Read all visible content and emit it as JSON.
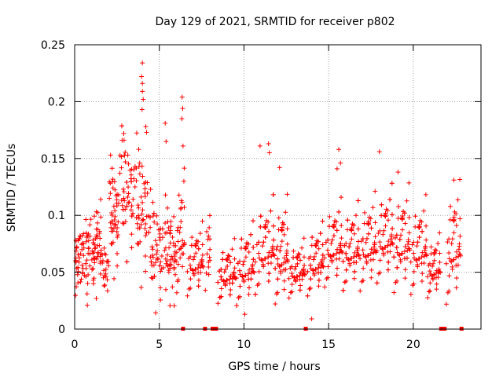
{
  "chart_data": {
    "type": "scatter",
    "title": "Day 129 of 2021, SRMTID for receiver p802",
    "xlabel": "GPS time / hours",
    "ylabel": "SRMTID / TECUs",
    "xlim": [
      0,
      24
    ],
    "ylim": [
      0,
      0.25
    ],
    "xticks": [
      0,
      5,
      10,
      15,
      20
    ],
    "xtick_labels": [
      "0",
      "5",
      "10",
      "15",
      "20"
    ],
    "yticks": [
      0,
      0.05,
      0.1,
      0.15,
      0.2,
      0.25
    ],
    "ytick_labels": [
      "0",
      "0.05",
      "0.1",
      "0.15",
      "0.2",
      "0.25"
    ],
    "grid": true,
    "marker": "+",
    "color": "#ff0000",
    "outliers": [
      {
        "x": 4.0,
        "y": 0.234
      },
      {
        "x": 3.95,
        "y": 0.222
      },
      {
        "x": 4.0,
        "y": 0.216
      },
      {
        "x": 4.0,
        "y": 0.209
      },
      {
        "x": 4.05,
        "y": 0.202
      },
      {
        "x": 3.98,
        "y": 0.193
      },
      {
        "x": 6.35,
        "y": 0.204
      },
      {
        "x": 6.38,
        "y": 0.194
      },
      {
        "x": 6.33,
        "y": 0.185
      },
      {
        "x": 5.35,
        "y": 0.181
      },
      {
        "x": 4.2,
        "y": 0.178
      },
      {
        "x": 4.25,
        "y": 0.173
      },
      {
        "x": 5.4,
        "y": 0.165
      },
      {
        "x": 6.4,
        "y": 0.161
      },
      {
        "x": 2.9,
        "y": 0.172
      },
      {
        "x": 2.8,
        "y": 0.166
      },
      {
        "x": 15.6,
        "y": 0.158
      },
      {
        "x": 18.0,
        "y": 0.156
      },
      {
        "x": 11.45,
        "y": 0.163
      },
      {
        "x": 11.5,
        "y": 0.155
      },
      {
        "x": 10.95,
        "y": 0.161
      },
      {
        "x": 15.7,
        "y": 0.146
      },
      {
        "x": 12.1,
        "y": 0.142
      },
      {
        "x": 15.5,
        "y": 0.141
      },
      {
        "x": 19.1,
        "y": 0.138
      },
      {
        "x": 22.4,
        "y": 0.131
      },
      {
        "x": 6.45,
        "y": 0.13
      },
      {
        "x": 14.0,
        "y": 0.009
      },
      {
        "x": 0.75,
        "y": 0.021
      },
      {
        "x": 10.05,
        "y": 0.013
      }
    ],
    "gap_markers_x": [
      6.4,
      7.7,
      8.15,
      8.35,
      13.65,
      21.65,
      21.85,
      22.85
    ],
    "dense_segments": [
      {
        "x_start": 0.05,
        "x_end": 0.9,
        "center": 0.065,
        "spread": 0.015,
        "count": 60
      },
      {
        "x_start": 0.9,
        "x_end": 1.6,
        "center": 0.07,
        "spread": 0.017,
        "count": 50
      },
      {
        "x_start": 1.6,
        "x_end": 2.0,
        "center": 0.048,
        "spread": 0.01,
        "count": 20
      },
      {
        "x_start": 2.0,
        "x_end": 2.6,
        "center": 0.095,
        "spread": 0.02,
        "count": 45
      },
      {
        "x_start": 2.6,
        "x_end": 3.5,
        "center": 0.115,
        "spread": 0.022,
        "count": 60
      },
      {
        "x_start": 3.5,
        "x_end": 4.3,
        "center": 0.1,
        "spread": 0.025,
        "count": 55
      },
      {
        "x_start": 4.3,
        "x_end": 5.2,
        "center": 0.065,
        "spread": 0.02,
        "count": 55
      },
      {
        "x_start": 5.2,
        "x_end": 6.0,
        "center": 0.06,
        "spread": 0.02,
        "count": 50
      },
      {
        "x_start": 6.0,
        "x_end": 6.5,
        "center": 0.075,
        "spread": 0.025,
        "count": 30
      },
      {
        "x_start": 6.6,
        "x_end": 7.6,
        "center": 0.055,
        "spread": 0.015,
        "count": 55
      },
      {
        "x_start": 7.7,
        "x_end": 8.0,
        "center": 0.06,
        "spread": 0.015,
        "count": 15
      },
      {
        "x_start": 8.4,
        "x_end": 9.5,
        "center": 0.045,
        "spread": 0.013,
        "count": 70
      },
      {
        "x_start": 9.5,
        "x_end": 10.6,
        "center": 0.05,
        "spread": 0.017,
        "count": 70
      },
      {
        "x_start": 10.6,
        "x_end": 11.8,
        "center": 0.065,
        "spread": 0.02,
        "count": 75
      },
      {
        "x_start": 11.8,
        "x_end": 12.6,
        "center": 0.06,
        "spread": 0.022,
        "count": 55
      },
      {
        "x_start": 12.6,
        "x_end": 13.6,
        "center": 0.048,
        "spread": 0.012,
        "count": 65
      },
      {
        "x_start": 13.7,
        "x_end": 14.7,
        "center": 0.055,
        "spread": 0.015,
        "count": 65
      },
      {
        "x_start": 14.7,
        "x_end": 15.8,
        "center": 0.068,
        "spread": 0.018,
        "count": 70
      },
      {
        "x_start": 15.8,
        "x_end": 16.8,
        "center": 0.065,
        "spread": 0.018,
        "count": 65
      },
      {
        "x_start": 16.8,
        "x_end": 17.8,
        "center": 0.068,
        "spread": 0.02,
        "count": 60
      },
      {
        "x_start": 17.8,
        "x_end": 18.8,
        "center": 0.075,
        "spread": 0.02,
        "count": 60
      },
      {
        "x_start": 18.8,
        "x_end": 19.8,
        "center": 0.07,
        "spread": 0.022,
        "count": 60
      },
      {
        "x_start": 19.8,
        "x_end": 20.8,
        "center": 0.065,
        "spread": 0.02,
        "count": 55
      },
      {
        "x_start": 20.8,
        "x_end": 21.6,
        "center": 0.05,
        "spread": 0.013,
        "count": 40
      },
      {
        "x_start": 21.9,
        "x_end": 22.8,
        "center": 0.065,
        "spread": 0.025,
        "count": 45
      }
    ]
  }
}
